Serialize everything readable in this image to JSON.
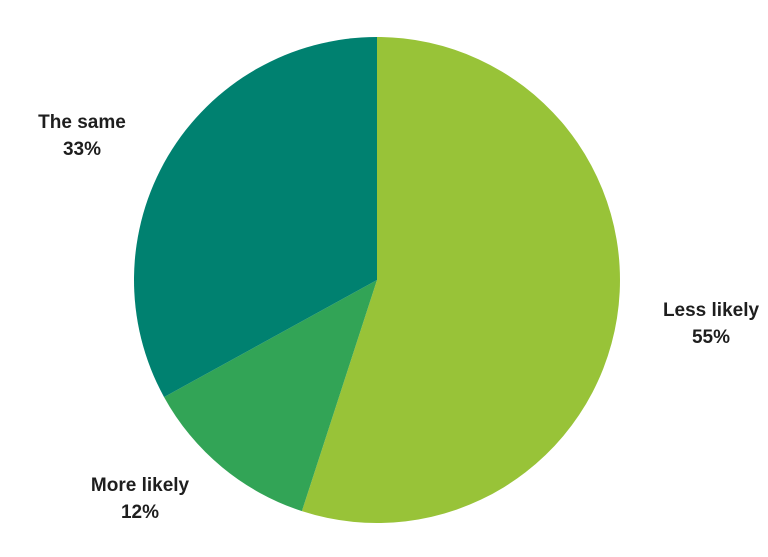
{
  "chart_data": {
    "type": "pie",
    "title": "",
    "start_angle_deg": 0,
    "direction": "clockwise",
    "label_style": "outside, category name above percentage",
    "slices": [
      {
        "label": "Less likely",
        "value": 55,
        "percent_label": "55%",
        "color": "#98C338"
      },
      {
        "label": "More likely",
        "value": 12,
        "percent_label": "12%",
        "color": "#32A456"
      },
      {
        "label": "The same",
        "value": 33,
        "percent_label": "33%",
        "color": "#008170"
      }
    ]
  },
  "colors": {
    "background": "#ffffff",
    "label_text": "#1e1e1e"
  }
}
